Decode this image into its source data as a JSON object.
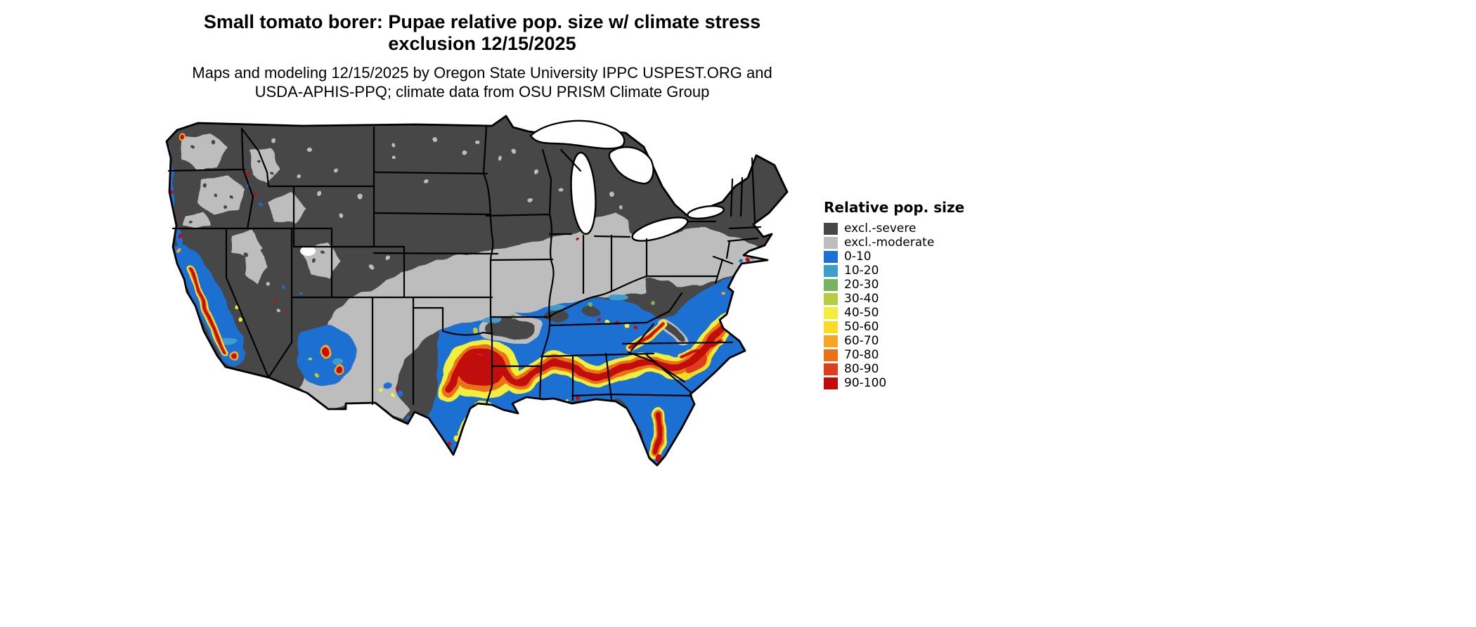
{
  "title": {
    "lines": [
      "Small tomato borer: Pupae relative pop. size w/ climate stress",
      "exclusion 12/15/2025"
    ]
  },
  "subtitle": {
    "lines": [
      "Maps and modeling 12/15/2025 by Oregon State University IPPC USPEST.ORG and",
      "USDA-APHIS-PPQ; climate data from OSU PRISM Climate Group"
    ]
  },
  "legend": {
    "title": "Relative pop. size",
    "items": [
      {
        "key": "excl-severe",
        "label": "excl.-severe",
        "color": "#474747"
      },
      {
        "key": "excl-moderate",
        "label": "excl.-moderate",
        "color": "#bdbdbd"
      },
      {
        "key": "v0-10",
        "label": "0-10",
        "color": "#1b70d1"
      },
      {
        "key": "v10-20",
        "label": "10-20",
        "color": "#3f9dc9"
      },
      {
        "key": "v20-30",
        "label": "20-30",
        "color": "#79b35f"
      },
      {
        "key": "v30-40",
        "label": "30-40",
        "color": "#b9cc41"
      },
      {
        "key": "v40-50",
        "label": "40-50",
        "color": "#f2ee3e"
      },
      {
        "key": "v50-60",
        "label": "50-60",
        "color": "#fbdb24"
      },
      {
        "key": "v60-70",
        "label": "60-70",
        "color": "#f6a623"
      },
      {
        "key": "v70-80",
        "label": "70-80",
        "color": "#ec7014"
      },
      {
        "key": "v80-90",
        "label": "80-90",
        "color": "#dd3e1c"
      },
      {
        "key": "v90-100",
        "label": "90-100",
        "color": "#c20a0a"
      }
    ]
  },
  "map": {
    "region": "contiguous-united-states",
    "theme": "relative population size with climate stress exclusion"
  }
}
